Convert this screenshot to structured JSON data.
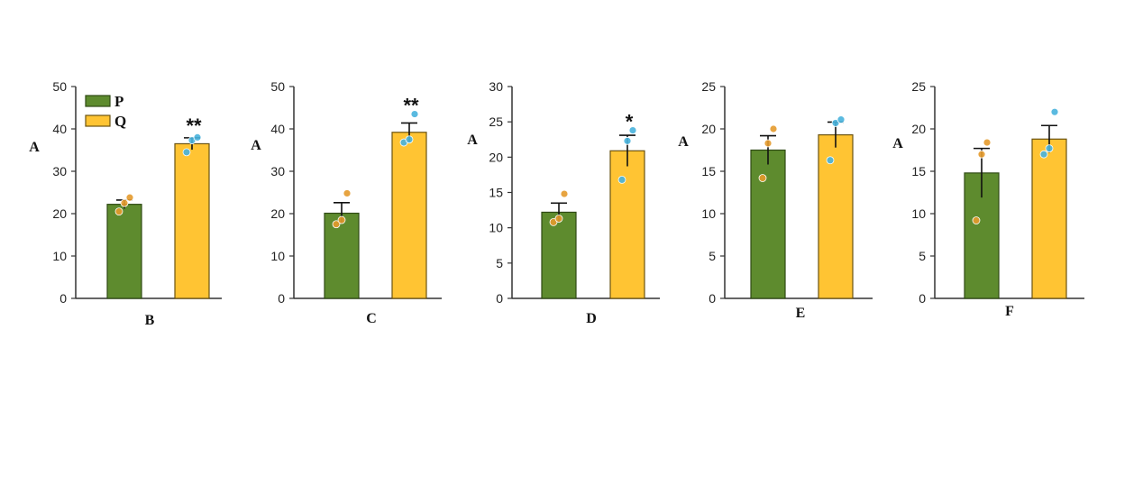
{
  "colors": {
    "P_fill": "#5e8b2e",
    "P_stroke": "#2f4a14",
    "Q_fill": "#ffc433",
    "Q_stroke": "#6b5311",
    "P_dot": "#e49a2c",
    "Q_dot": "#48b3dd",
    "axis": "#333333"
  },
  "legend": {
    "position": "top-left of first panel",
    "items": [
      {
        "key": "P",
        "label": "P"
      },
      {
        "key": "Q",
        "label": "Q"
      }
    ]
  },
  "chart_data": [
    {
      "type": "bar",
      "xlabel": "B",
      "ylabel": "A",
      "ylim": [
        0,
        50
      ],
      "yticks": [
        0,
        10,
        20,
        30,
        40,
        50
      ],
      "significance": "**",
      "series": [
        {
          "name": "P",
          "value": 22.2,
          "error": 1.0,
          "points": [
            20.5,
            22.5,
            23.8
          ]
        },
        {
          "name": "Q",
          "value": 36.5,
          "error": 1.4,
          "points": [
            34.5,
            37.3,
            38.0
          ]
        }
      ]
    },
    {
      "type": "bar",
      "xlabel": "C",
      "ylabel": "A",
      "ylim": [
        0,
        50
      ],
      "yticks": [
        0,
        10,
        20,
        30,
        40,
        50
      ],
      "significance": "**",
      "series": [
        {
          "name": "P",
          "value": 20.1,
          "error": 2.5,
          "points": [
            17.5,
            18.5,
            24.8
          ]
        },
        {
          "name": "Q",
          "value": 39.2,
          "error": 2.2,
          "points": [
            36.8,
            37.5,
            43.5
          ]
        }
      ]
    },
    {
      "type": "bar",
      "xlabel": "D",
      "ylabel": "A",
      "ylim": [
        0,
        30
      ],
      "yticks": [
        0,
        5,
        10,
        15,
        20,
        25,
        30
      ],
      "significance": "*",
      "series": [
        {
          "name": "P",
          "value": 12.2,
          "error": 1.3,
          "points": [
            10.8,
            11.3,
            14.8
          ]
        },
        {
          "name": "Q",
          "value": 20.9,
          "error": 2.2,
          "points": [
            16.8,
            22.3,
            23.8
          ]
        }
      ]
    },
    {
      "type": "bar",
      "xlabel": "E",
      "ylabel": "A",
      "ylim": [
        0,
        25
      ],
      "yticks": [
        0,
        5,
        10,
        15,
        20,
        25
      ],
      "significance": "",
      "series": [
        {
          "name": "P",
          "value": 17.5,
          "error": 1.7,
          "points": [
            14.2,
            18.3,
            20.0
          ]
        },
        {
          "name": "Q",
          "value": 19.3,
          "error": 1.5,
          "points": [
            16.3,
            20.7,
            21.1
          ]
        }
      ]
    },
    {
      "type": "bar",
      "xlabel": "F",
      "ylabel": "A",
      "ylim": [
        0,
        25
      ],
      "yticks": [
        0,
        5,
        10,
        15,
        20,
        25
      ],
      "significance": "",
      "series": [
        {
          "name": "P",
          "value": 14.8,
          "error": 2.9,
          "points": [
            9.2,
            17.0,
            18.4
          ]
        },
        {
          "name": "Q",
          "value": 18.8,
          "error": 1.6,
          "points": [
            17.0,
            17.7,
            22.0
          ]
        }
      ]
    }
  ]
}
